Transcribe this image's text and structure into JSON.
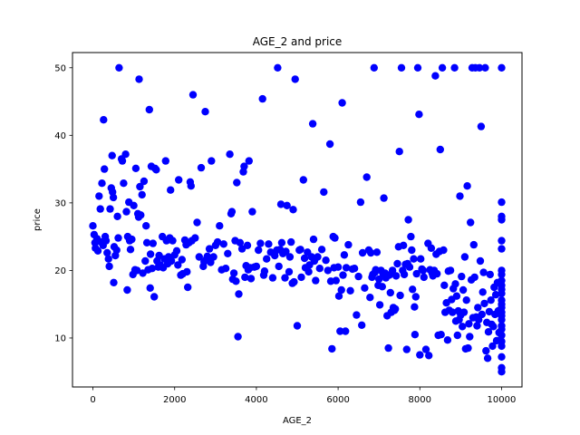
{
  "chart_data": {
    "type": "scatter",
    "title": "AGE_2 and price",
    "xlabel": "AGE_2",
    "ylabel": "price",
    "xlim": [
      -500,
      10500
    ],
    "ylim": [
      2.75,
      52.25
    ],
    "xticks": [
      0,
      2000,
      4000,
      6000,
      8000,
      10000
    ],
    "yticks": [
      10,
      20,
      30,
      40,
      50
    ],
    "grid": false,
    "legend": "none",
    "color": "#0000ff",
    "points": [
      [
        0,
        26.6
      ],
      [
        30,
        25.3
      ],
      [
        50,
        24.1
      ],
      [
        60,
        23.3
      ],
      [
        100,
        24.7
      ],
      [
        120,
        22.9
      ],
      [
        150,
        31.0
      ],
      [
        180,
        29.1
      ],
      [
        200,
        24.2
      ],
      [
        220,
        32.9
      ],
      [
        250,
        23.7
      ],
      [
        260,
        42.3
      ],
      [
        280,
        35.0
      ],
      [
        300,
        25.0
      ],
      [
        320,
        24.4
      ],
      [
        350,
        22.6
      ],
      [
        380,
        21.7
      ],
      [
        400,
        20.6
      ],
      [
        420,
        29.1
      ],
      [
        450,
        32.2
      ],
      [
        470,
        37.0
      ],
      [
        480,
        31.6
      ],
      [
        500,
        30.8
      ],
      [
        510,
        18.2
      ],
      [
        520,
        23.5
      ],
      [
        550,
        22.2
      ],
      [
        580,
        23.0
      ],
      [
        600,
        28.0
      ],
      [
        620,
        24.8
      ],
      [
        640,
        50.0
      ],
      [
        700,
        36.5
      ],
      [
        720,
        36.2
      ],
      [
        750,
        32.9
      ],
      [
        800,
        37.2
      ],
      [
        820,
        28.7
      ],
      [
        840,
        17.1
      ],
      [
        850,
        25.0
      ],
      [
        880,
        30.1
      ],
      [
        900,
        24.4
      ],
      [
        920,
        23.1
      ],
      [
        950,
        24.6
      ],
      [
        980,
        19.4
      ],
      [
        1000,
        29.6
      ],
      [
        1030,
        20.1
      ],
      [
        1050,
        35.1
      ],
      [
        1080,
        20.0
      ],
      [
        1100,
        28.4
      ],
      [
        1120,
        27.9
      ],
      [
        1130,
        48.3
      ],
      [
        1150,
        32.4
      ],
      [
        1170,
        28.2
      ],
      [
        1200,
        31.2
      ],
      [
        1220,
        19.6
      ],
      [
        1250,
        33.2
      ],
      [
        1280,
        21.4
      ],
      [
        1300,
        26.6
      ],
      [
        1320,
        24.1
      ],
      [
        1350,
        20.1
      ],
      [
        1380,
        43.8
      ],
      [
        1400,
        17.4
      ],
      [
        1410,
        22.4
      ],
      [
        1430,
        35.4
      ],
      [
        1450,
        20.3
      ],
      [
        1470,
        24.0
      ],
      [
        1500,
        16.1
      ],
      [
        1520,
        35.1
      ],
      [
        1550,
        34.9
      ],
      [
        1570,
        21.4
      ],
      [
        1600,
        20.5
      ],
      [
        1620,
        22.2
      ],
      [
        1650,
        20.8
      ],
      [
        1700,
        25.0
      ],
      [
        1720,
        20.4
      ],
      [
        1750,
        21.7
      ],
      [
        1780,
        36.2
      ],
      [
        1800,
        24.4
      ],
      [
        1830,
        21.0
      ],
      [
        1850,
        22.0
      ],
      [
        1880,
        24.8
      ],
      [
        1900,
        31.9
      ],
      [
        1920,
        21.4
      ],
      [
        1950,
        24.4
      ],
      [
        2000,
        22.3
      ],
      [
        2050,
        22.9
      ],
      [
        2080,
        20.8
      ],
      [
        2100,
        33.4
      ],
      [
        2150,
        19.3
      ],
      [
        2180,
        21.6
      ],
      [
        2200,
        19.5
      ],
      [
        2250,
        24.5
      ],
      [
        2280,
        23.8
      ],
      [
        2300,
        19.8
      ],
      [
        2320,
        17.5
      ],
      [
        2350,
        24.1
      ],
      [
        2380,
        33.1
      ],
      [
        2400,
        32.5
      ],
      [
        2420,
        24.4
      ],
      [
        2450,
        46.0
      ],
      [
        2500,
        24.8
      ],
      [
        2550,
        27.1
      ],
      [
        2600,
        22.0
      ],
      [
        2650,
        35.2
      ],
      [
        2700,
        20.6
      ],
      [
        2720,
        21.3
      ],
      [
        2750,
        43.5
      ],
      [
        2780,
        21.7
      ],
      [
        2800,
        22.1
      ],
      [
        2850,
        23.2
      ],
      [
        2880,
        21.2
      ],
      [
        2900,
        36.2
      ],
      [
        2950,
        22.0
      ],
      [
        3000,
        23.7
      ],
      [
        3050,
        24.2
      ],
      [
        3100,
        26.6
      ],
      [
        3150,
        20.1
      ],
      [
        3200,
        23.9
      ],
      [
        3250,
        20.3
      ],
      [
        3300,
        22.5
      ],
      [
        3350,
        37.2
      ],
      [
        3380,
        28.4
      ],
      [
        3400,
        28.7
      ],
      [
        3420,
        18.7
      ],
      [
        3450,
        19.6
      ],
      [
        3480,
        24.4
      ],
      [
        3500,
        18.4
      ],
      [
        3520,
        33.0
      ],
      [
        3550,
        10.2
      ],
      [
        3570,
        16.5
      ],
      [
        3600,
        24.1
      ],
      [
        3650,
        23.2
      ],
      [
        3680,
        34.6
      ],
      [
        3700,
        35.4
      ],
      [
        3720,
        19.0
      ],
      [
        3750,
        20.7
      ],
      [
        3780,
        23.7
      ],
      [
        3800,
        20.1
      ],
      [
        3820,
        36.2
      ],
      [
        3850,
        20.4
      ],
      [
        3870,
        18.8
      ],
      [
        3900,
        28.7
      ],
      [
        3950,
        20.5
      ],
      [
        4000,
        20.6
      ],
      [
        4050,
        23.0
      ],
      [
        4100,
        24.0
      ],
      [
        4150,
        45.4
      ],
      [
        4180,
        19.3
      ],
      [
        4200,
        19.9
      ],
      [
        4250,
        21.7
      ],
      [
        4300,
        23.9
      ],
      [
        4350,
        22.7
      ],
      [
        4400,
        18.9
      ],
      [
        4450,
        22.2
      ],
      [
        4500,
        23.0
      ],
      [
        4520,
        50.0
      ],
      [
        4550,
        20.6
      ],
      [
        4580,
        23.1
      ],
      [
        4600,
        29.8
      ],
      [
        4620,
        24.1
      ],
      [
        4650,
        22.5
      ],
      [
        4700,
        18.9
      ],
      [
        4720,
        22.8
      ],
      [
        4750,
        29.6
      ],
      [
        4800,
        19.8
      ],
      [
        4820,
        22.0
      ],
      [
        4850,
        24.2
      ],
      [
        4880,
        18.1
      ],
      [
        4900,
        29.0
      ],
      [
        4920,
        18.3
      ],
      [
        4950,
        48.3
      ],
      [
        5000,
        11.8
      ],
      [
        5050,
        23.0
      ],
      [
        5080,
        23.1
      ],
      [
        5100,
        19.0
      ],
      [
        5150,
        33.4
      ],
      [
        5180,
        21.8
      ],
      [
        5200,
        20.4
      ],
      [
        5250,
        22.7
      ],
      [
        5280,
        19.8
      ],
      [
        5300,
        20.8
      ],
      [
        5350,
        22.0
      ],
      [
        5380,
        41.7
      ],
      [
        5400,
        24.6
      ],
      [
        5420,
        21.4
      ],
      [
        5450,
        18.5
      ],
      [
        5500,
        22.0
      ],
      [
        5550,
        20.3
      ],
      [
        5600,
        23.1
      ],
      [
        5650,
        31.6
      ],
      [
        5700,
        21.5
      ],
      [
        5750,
        20.0
      ],
      [
        5800,
        38.7
      ],
      [
        5820,
        18.4
      ],
      [
        5850,
        8.4
      ],
      [
        5880,
        25.0
      ],
      [
        5900,
        20.4
      ],
      [
        5920,
        24.8
      ],
      [
        5950,
        18.5
      ],
      [
        6000,
        20.5
      ],
      [
        6020,
        16.2
      ],
      [
        6050,
        11.0
      ],
      [
        6080,
        17.1
      ],
      [
        6100,
        44.8
      ],
      [
        6120,
        19.3
      ],
      [
        6150,
        22.3
      ],
      [
        6180,
        11.0
      ],
      [
        6200,
        20.4
      ],
      [
        6250,
        23.8
      ],
      [
        6300,
        17.0
      ],
      [
        6350,
        20.2
      ],
      [
        6400,
        20.3
      ],
      [
        6450,
        13.4
      ],
      [
        6500,
        19.1
      ],
      [
        6550,
        30.1
      ],
      [
        6580,
        11.9
      ],
      [
        6600,
        22.6
      ],
      [
        6650,
        17.4
      ],
      [
        6700,
        33.8
      ],
      [
        6750,
        23.0
      ],
      [
        6780,
        16.0
      ],
      [
        6800,
        22.6
      ],
      [
        6830,
        19.0
      ],
      [
        6850,
        19.4
      ],
      [
        6880,
        50.0
      ],
      [
        6900,
        19.7
      ],
      [
        6920,
        20.1
      ],
      [
        6950,
        22.7
      ],
      [
        6980,
        17.8
      ],
      [
        7000,
        18.7
      ],
      [
        7020,
        14.9
      ],
      [
        7050,
        20.0
      ],
      [
        7080,
        17.6
      ],
      [
        7100,
        19.5
      ],
      [
        7120,
        30.7
      ],
      [
        7150,
        19.6
      ],
      [
        7170,
        18.9
      ],
      [
        7200,
        13.3
      ],
      [
        7230,
        8.5
      ],
      [
        7250,
        19.3
      ],
      [
        7280,
        16.7
      ],
      [
        7300,
        13.8
      ],
      [
        7330,
        20.0
      ],
      [
        7350,
        14.5
      ],
      [
        7380,
        14.1
      ],
      [
        7400,
        14.3
      ],
      [
        7420,
        19.2
      ],
      [
        7450,
        21.0
      ],
      [
        7480,
        23.5
      ],
      [
        7500,
        37.6
      ],
      [
        7520,
        16.3
      ],
      [
        7550,
        50.0
      ],
      [
        7580,
        20.0
      ],
      [
        7600,
        23.7
      ],
      [
        7620,
        19.4
      ],
      [
        7650,
        20.9
      ],
      [
        7680,
        8.3
      ],
      [
        7700,
        21.0
      ],
      [
        7720,
        27.5
      ],
      [
        7750,
        20.5
      ],
      [
        7780,
        25.0
      ],
      [
        7800,
        23.0
      ],
      [
        7820,
        17.2
      ],
      [
        7850,
        21.7
      ],
      [
        7870,
        14.6
      ],
      [
        7880,
        10.5
      ],
      [
        7900,
        16.1
      ],
      [
        7920,
        19.5
      ],
      [
        7950,
        50.0
      ],
      [
        7980,
        43.1
      ],
      [
        8000,
        7.5
      ],
      [
        8020,
        21.7
      ],
      [
        8050,
        20.2
      ],
      [
        8080,
        20.0
      ],
      [
        8100,
        19.0
      ],
      [
        8150,
        8.3
      ],
      [
        8200,
        24.0
      ],
      [
        8220,
        7.4
      ],
      [
        8250,
        20.1
      ],
      [
        8280,
        23.3
      ],
      [
        8300,
        19.6
      ],
      [
        8320,
        19.2
      ],
      [
        8350,
        20.0
      ],
      [
        8380,
        48.8
      ],
      [
        8400,
        22.4
      ],
      [
        8420,
        19.5
      ],
      [
        8450,
        10.4
      ],
      [
        8480,
        22.8
      ],
      [
        8500,
        37.9
      ],
      [
        8520,
        10.5
      ],
      [
        8550,
        50.0
      ],
      [
        8580,
        23.0
      ],
      [
        8600,
        17.8
      ],
      [
        8620,
        13.8
      ],
      [
        8650,
        15.2
      ],
      [
        8680,
        9.7
      ],
      [
        8700,
        19.9
      ],
      [
        8720,
        14.1
      ],
      [
        8750,
        20.0
      ],
      [
        8780,
        15.7
      ],
      [
        8800,
        13.8
      ],
      [
        8820,
        17.3
      ],
      [
        8850,
        50.0
      ],
      [
        8870,
        18.0
      ],
      [
        8880,
        12.5
      ],
      [
        8900,
        16.2
      ],
      [
        8920,
        10.4
      ],
      [
        8940,
        14.0
      ],
      [
        8960,
        12.7
      ],
      [
        8980,
        31.0
      ],
      [
        9000,
        13.4
      ],
      [
        9020,
        19.1
      ],
      [
        9040,
        11.7
      ],
      [
        9060,
        17.1
      ],
      [
        9080,
        13.8
      ],
      [
        9100,
        22.0
      ],
      [
        9120,
        8.4
      ],
      [
        9140,
        15.6
      ],
      [
        9160,
        32.5
      ],
      [
        9180,
        8.5
      ],
      [
        9200,
        12.1
      ],
      [
        9220,
        10.2
      ],
      [
        9240,
        27.1
      ],
      [
        9260,
        18.6
      ],
      [
        9280,
        50.0
      ],
      [
        9300,
        13.0
      ],
      [
        9320,
        23.8
      ],
      [
        9340,
        19.0
      ],
      [
        9360,
        50.0
      ],
      [
        9380,
        13.1
      ],
      [
        9400,
        11.8
      ],
      [
        9420,
        14.5
      ],
      [
        9440,
        12.7
      ],
      [
        9460,
        50.0
      ],
      [
        9480,
        21.4
      ],
      [
        9500,
        41.3
      ],
      [
        9520,
        13.5
      ],
      [
        9540,
        16.8
      ],
      [
        9560,
        19.7
      ],
      [
        9580,
        15.1
      ],
      [
        9600,
        50.0
      ],
      [
        9620,
        8.1
      ],
      [
        9640,
        12.3
      ],
      [
        9660,
        7.0
      ],
      [
        9680,
        10.9
      ],
      [
        9700,
        13.9
      ],
      [
        9720,
        19.4
      ],
      [
        9740,
        15.6
      ],
      [
        9760,
        12.0
      ],
      [
        9780,
        8.8
      ],
      [
        9800,
        11.7
      ],
      [
        9820,
        17.5
      ],
      [
        9840,
        13.5
      ],
      [
        9860,
        16.4
      ],
      [
        9880,
        9.6
      ],
      [
        9900,
        18.2
      ],
      [
        9920,
        14.0
      ],
      [
        9940,
        10.8
      ],
      [
        10000,
        50.0
      ],
      [
        10000,
        30.1
      ],
      [
        10000,
        28.0
      ],
      [
        10000,
        27.5
      ],
      [
        10000,
        24.4
      ],
      [
        10000,
        23.2
      ],
      [
        10000,
        20.0
      ],
      [
        10000,
        19.4
      ],
      [
        10000,
        18.5
      ],
      [
        10000,
        17.8
      ],
      [
        10000,
        17.2
      ],
      [
        10000,
        16.6
      ],
      [
        10000,
        15.6
      ],
      [
        10000,
        15.0
      ],
      [
        10000,
        14.5
      ],
      [
        10000,
        13.8
      ],
      [
        10000,
        13.3
      ],
      [
        10000,
        12.7
      ],
      [
        10000,
        11.8
      ],
      [
        10000,
        11.3
      ],
      [
        10000,
        10.4
      ],
      [
        10000,
        9.5
      ],
      [
        10000,
        8.8
      ],
      [
        10000,
        7.2
      ],
      [
        10000,
        5.6
      ],
      [
        10000,
        5.0
      ]
    ]
  }
}
